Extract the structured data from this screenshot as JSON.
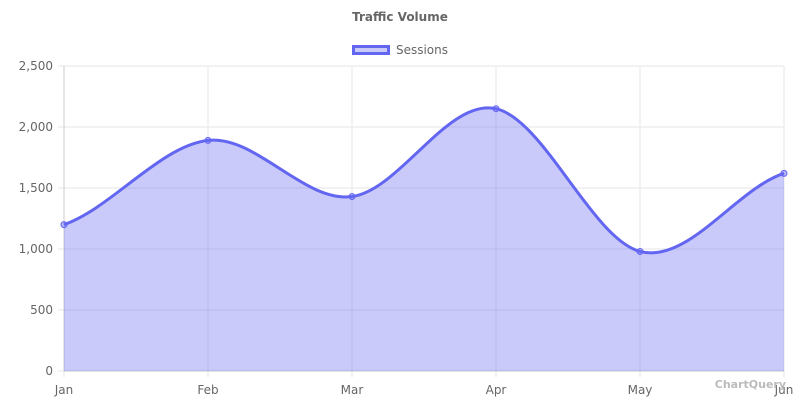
{
  "chart_data": {
    "type": "line",
    "title": "Traffic Volume",
    "categories": [
      "Jan",
      "Feb",
      "Mar",
      "Apr",
      "May",
      "Jun"
    ],
    "series": [
      {
        "name": "Sessions",
        "values": [
          1200,
          1890,
          1430,
          2150,
          980,
          1620
        ],
        "color": "#6366f1",
        "fill": "rgba(99,102,241,0.35)",
        "filled": true,
        "smooth": true
      }
    ],
    "xlabel": "",
    "ylabel": "",
    "ylim": [
      0,
      2500
    ],
    "yticks": [
      0,
      500,
      1000,
      1500,
      2000,
      2500
    ],
    "ytick_labels": [
      "0",
      "500",
      "1,000",
      "1,500",
      "2,000",
      "2,500"
    ],
    "grid": true,
    "legend_position": "top"
  },
  "watermark": "ChartQuery"
}
